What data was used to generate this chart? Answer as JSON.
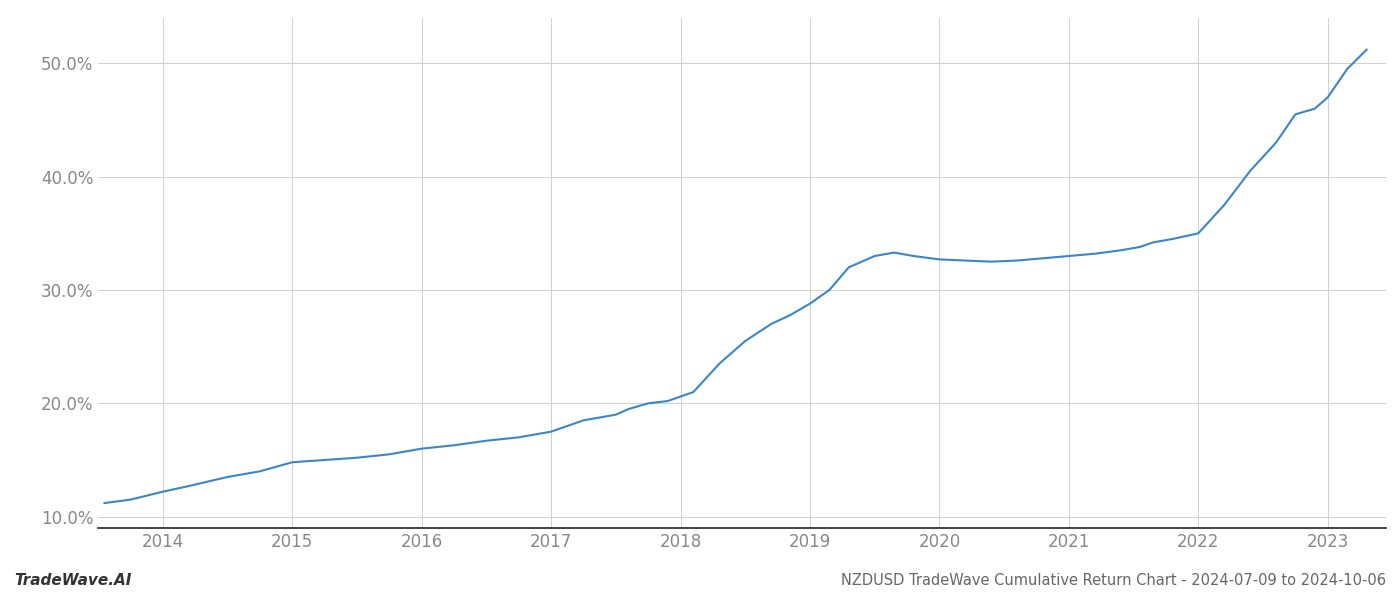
{
  "x_values": [
    2013.55,
    2013.75,
    2014.0,
    2014.2,
    2014.5,
    2014.75,
    2015.0,
    2015.25,
    2015.5,
    2015.75,
    2016.0,
    2016.25,
    2016.5,
    2016.75,
    2017.0,
    2017.25,
    2017.5,
    2017.6,
    2017.75,
    2017.9,
    2018.1,
    2018.3,
    2018.5,
    2018.7,
    2018.85,
    2019.0,
    2019.15,
    2019.3,
    2019.5,
    2019.65,
    2019.8,
    2020.0,
    2020.2,
    2020.4,
    2020.6,
    2020.8,
    2021.0,
    2021.2,
    2021.4,
    2021.55,
    2021.65,
    2021.8,
    2022.0,
    2022.2,
    2022.4,
    2022.6,
    2022.75,
    2022.9,
    2023.0,
    2023.15,
    2023.3
  ],
  "y_values": [
    11.2,
    11.5,
    12.2,
    12.7,
    13.5,
    14.0,
    14.8,
    15.0,
    15.2,
    15.5,
    16.0,
    16.3,
    16.7,
    17.0,
    17.5,
    18.5,
    19.0,
    19.5,
    20.0,
    20.2,
    21.0,
    23.5,
    25.5,
    27.0,
    27.8,
    28.8,
    30.0,
    32.0,
    33.0,
    33.3,
    33.0,
    32.7,
    32.6,
    32.5,
    32.6,
    32.8,
    33.0,
    33.2,
    33.5,
    33.8,
    34.2,
    34.5,
    35.0,
    37.5,
    40.5,
    43.0,
    45.5,
    46.0,
    47.0,
    49.5,
    51.2
  ],
  "line_color": "#3a86c8",
  "line_width": 1.5,
  "title": "NZDUSD TradeWave Cumulative Return Chart - 2024-07-09 to 2024-10-06",
  "title_fontsize": 10.5,
  "watermark": "TradeWave.AI",
  "watermark_fontsize": 11,
  "xlim": [
    2013.5,
    2023.45
  ],
  "ylim": [
    9.0,
    54.0
  ],
  "yticks": [
    10.0,
    20.0,
    30.0,
    40.0,
    50.0
  ],
  "xticks": [
    2014,
    2015,
    2016,
    2017,
    2018,
    2019,
    2020,
    2021,
    2022,
    2023
  ],
  "grid_color": "#d0d0d0",
  "background_color": "#ffffff",
  "tick_label_fontsize": 12,
  "bottom_spine_color": "#222222",
  "tick_color": "#888888"
}
